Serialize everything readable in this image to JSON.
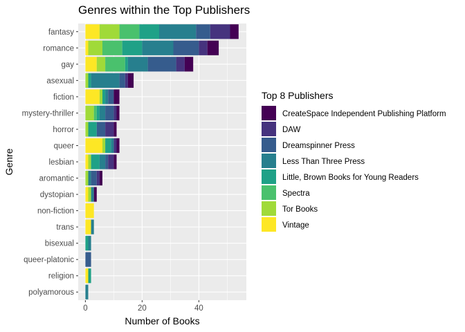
{
  "chart_data": {
    "type": "bar",
    "orientation": "horizontal",
    "stacked": true,
    "title": "Genres within the Top Publishers",
    "xlabel": "Number of Books",
    "ylabel": "Genre",
    "xlim": [
      0,
      56
    ],
    "xticks": [
      0,
      20,
      40
    ],
    "grid": true,
    "legend_position": "right",
    "legend_title": "Top 8 Publishers",
    "categories": [
      "fantasy",
      "romance",
      "gay",
      "asexual",
      "fiction",
      "mystery-thriller",
      "horror",
      "queer",
      "lesbian",
      "aromantic",
      "dystopian",
      "non-fiction",
      "trans",
      "bisexual",
      "queer-platonic",
      "religion",
      "polyamorous"
    ],
    "series": [
      {
        "name": "CreateSpace Independent Publishing Platform",
        "color": "#440154",
        "values": [
          3,
          4,
          3,
          2,
          2,
          1,
          1,
          1,
          1,
          1,
          1,
          0,
          0,
          0,
          0,
          0,
          0
        ]
      },
      {
        "name": "DAW",
        "color": "#46337E",
        "values": [
          7,
          3,
          3,
          1,
          0,
          1,
          3,
          1,
          2,
          1,
          0,
          0,
          0,
          0,
          0,
          0,
          0
        ]
      },
      {
        "name": "Dreamspinner Press",
        "color": "#365C8D",
        "values": [
          5,
          9,
          10,
          2,
          2,
          3,
          3,
          0,
          1,
          2,
          0,
          0,
          0,
          0,
          2,
          0,
          0
        ]
      },
      {
        "name": "Less Than Three Press",
        "color": "#277F8E",
        "values": [
          13,
          11,
          7,
          10,
          1,
          2,
          0,
          1,
          2,
          1,
          1,
          0,
          1,
          1,
          0,
          0,
          1
        ]
      },
      {
        "name": "Little, Brown Books for Young Readers",
        "color": "#1FA187",
        "values": [
          7,
          7,
          1,
          1,
          1,
          1,
          3,
          2,
          3,
          0,
          0,
          0,
          0,
          1,
          0,
          1,
          0
        ]
      },
      {
        "name": "Spectra",
        "color": "#4AC16D",
        "values": [
          7,
          7,
          7,
          0,
          0,
          1,
          0,
          0,
          0,
          0,
          0,
          0,
          0,
          0,
          0,
          0,
          0
        ]
      },
      {
        "name": "Tor Books",
        "color": "#A0DA39",
        "values": [
          7,
          5,
          3,
          1,
          1,
          3,
          1,
          1,
          1,
          1,
          1,
          0,
          0,
          0,
          0,
          0,
          0
        ]
      },
      {
        "name": "Vintage",
        "color": "#FDE725",
        "values": [
          5,
          1,
          4,
          0,
          5,
          0,
          0,
          6,
          1,
          0,
          1,
          3,
          2,
          0,
          0,
          1,
          0
        ]
      }
    ]
  }
}
